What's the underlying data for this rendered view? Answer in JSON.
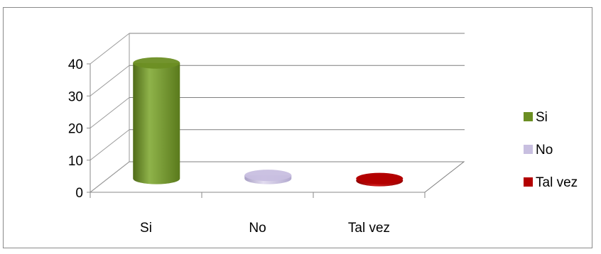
{
  "chart_data": {
    "type": "bar",
    "style": "3d-cylinder",
    "title": "",
    "xlabel": "",
    "ylabel": "",
    "categories": [
      "Si",
      "No",
      "Tal vez"
    ],
    "series": [
      {
        "name": "Si",
        "color": "#6b8e23",
        "values": [
          36,
          0,
          0
        ]
      },
      {
        "name": "No",
        "color": "#c8bfe0",
        "values": [
          0,
          1,
          0
        ]
      },
      {
        "name": "Tal vez",
        "color": "#b30000",
        "values": [
          0,
          0,
          0
        ]
      }
    ],
    "ylim": [
      0,
      40
    ],
    "yticks": [
      0,
      10,
      20,
      30,
      40
    ],
    "grid": true,
    "legend": {
      "position": "right",
      "entries": [
        "Si",
        "No",
        "Tal vez"
      ]
    }
  }
}
